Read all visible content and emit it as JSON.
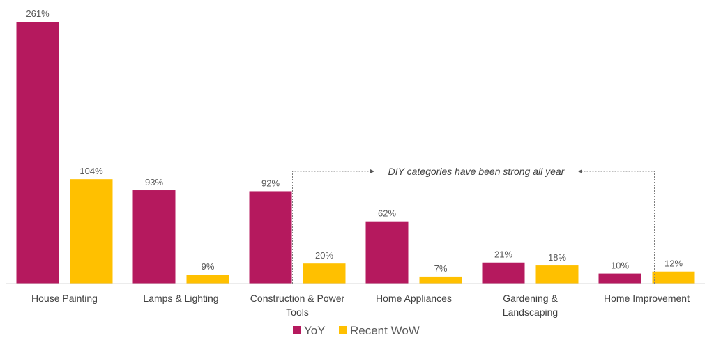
{
  "chart_data": {
    "type": "bar",
    "title": "",
    "xlabel": "",
    "ylabel": "",
    "ylim": [
      0,
      270
    ],
    "grid": false,
    "legend_position": "bottom",
    "categories": [
      [
        "House Painting"
      ],
      [
        "Lamps & Lighting"
      ],
      [
        "Construction & Power",
        "Tools"
      ],
      [
        "Home Appliances"
      ],
      [
        "Gardening &",
        "Landscaping"
      ],
      [
        "Home Improvement"
      ]
    ],
    "series": [
      {
        "name": "YoY",
        "color": "#B5195E",
        "values": [
          261,
          93,
          92,
          62,
          21,
          10
        ],
        "labels": [
          "261%",
          "93%",
          "92%",
          "62%",
          "21%",
          "10%"
        ]
      },
      {
        "name": "Recent WoW",
        "color": "#FFC000",
        "values": [
          104,
          9,
          20,
          7,
          18,
          12
        ],
        "labels": [
          "104%",
          "9%",
          "20%",
          "7%",
          "18%",
          "12%"
        ]
      }
    ],
    "annotation": {
      "text": "DIY categories have been strong all year",
      "start_category": 2,
      "end_category": 5
    }
  }
}
